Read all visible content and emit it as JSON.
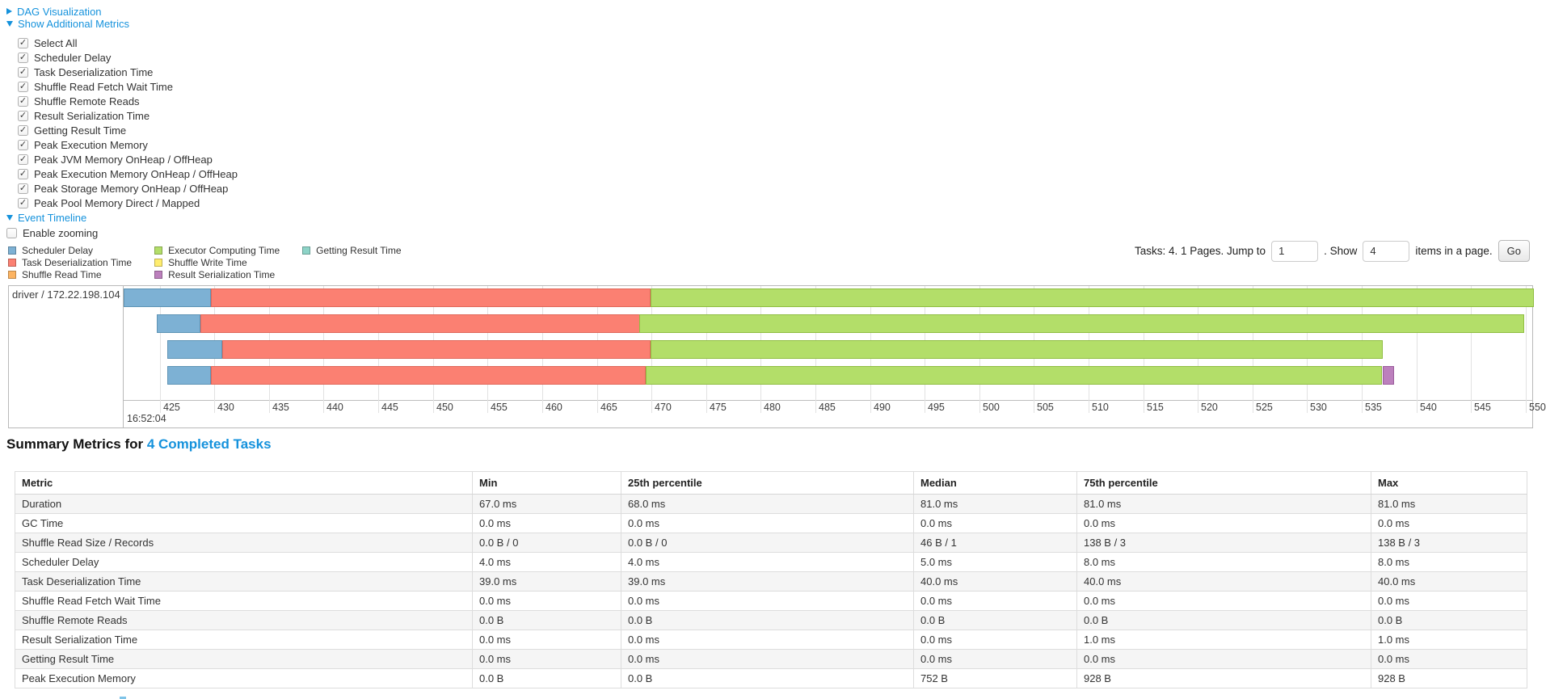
{
  "toggles": {
    "dag": "DAG Visualization",
    "metrics": "Show Additional Metrics",
    "timeline": "Event Timeline"
  },
  "metric_options": [
    {
      "label": "Select All",
      "checked": true
    },
    {
      "label": "Scheduler Delay",
      "checked": true
    },
    {
      "label": "Task Deserialization Time",
      "checked": true
    },
    {
      "label": "Shuffle Read Fetch Wait Time",
      "checked": true
    },
    {
      "label": "Shuffle Remote Reads",
      "checked": true
    },
    {
      "label": "Result Serialization Time",
      "checked": true
    },
    {
      "label": "Getting Result Time",
      "checked": true
    },
    {
      "label": "Peak Execution Memory",
      "checked": true
    },
    {
      "label": "Peak JVM Memory OnHeap / OffHeap",
      "checked": true
    },
    {
      "label": "Peak Execution Memory OnHeap / OffHeap",
      "checked": true
    },
    {
      "label": "Peak Storage Memory OnHeap / OffHeap",
      "checked": true
    },
    {
      "label": "Peak Pool Memory Direct / Mapped",
      "checked": true
    }
  ],
  "enable_zooming": {
    "label": "Enable zooming",
    "checked": false
  },
  "legend": {
    "columns": [
      [
        {
          "label": "Scheduler Delay",
          "color": "#7DB1D4"
        },
        {
          "label": "Task Deserialization Time",
          "color": "#FB8072"
        },
        {
          "label": "Shuffle Read Time",
          "color": "#FDB462"
        }
      ],
      [
        {
          "label": "Executor Computing Time",
          "color": "#B3DE69"
        },
        {
          "label": "Shuffle Write Time",
          "color": "#FFED6F"
        },
        {
          "label": "Result Serialization Time",
          "color": "#BC80BD"
        }
      ],
      [
        {
          "label": "Getting Result Time",
          "color": "#8DD3C7"
        }
      ]
    ]
  },
  "pagination": {
    "prefix": "Tasks: 4. 1 Pages. Jump to",
    "jump_value": "1",
    "between": ". Show",
    "show_value": "4",
    "suffix": "items in a page.",
    "go_label": "Go"
  },
  "chart_data": {
    "type": "timeline-gantt",
    "group_label": "driver / 172.22.198.104",
    "axis": {
      "min": 421.7,
      "max": 550.6,
      "tick_start": 425,
      "tick_end": 550,
      "tick_step": 5,
      "major_tick_label": "16:52:04"
    },
    "series_colors": {
      "scheduler_delay": {
        "fill": "#7DB1D4",
        "border": "#5E94B5"
      },
      "task_deserialization": {
        "fill": "#FB8072",
        "border": "#E0685A"
      },
      "executor_computing": {
        "fill": "#B3DE69",
        "border": "#90BE42"
      },
      "result_serialization": {
        "fill": "#BC80BD",
        "border": "#9A5C9B"
      }
    },
    "tasks": [
      {
        "segments": [
          {
            "type": "scheduler_delay",
            "start": 421.7,
            "end": 429.7
          },
          {
            "type": "task_deserialization",
            "start": 429.7,
            "end": 469.9
          },
          {
            "type": "executor_computing",
            "start": 469.9,
            "end": 550.7
          }
        ]
      },
      {
        "segments": [
          {
            "type": "scheduler_delay",
            "start": 424.7,
            "end": 428.7
          },
          {
            "type": "task_deserialization",
            "start": 428.7,
            "end": 468.9
          },
          {
            "type": "executor_computing",
            "start": 468.9,
            "end": 549.9
          }
        ]
      },
      {
        "segments": [
          {
            "type": "scheduler_delay",
            "start": 425.7,
            "end": 430.7
          },
          {
            "type": "task_deserialization",
            "start": 430.7,
            "end": 469.9
          },
          {
            "type": "executor_computing",
            "start": 469.9,
            "end": 536.9
          }
        ]
      },
      {
        "segments": [
          {
            "type": "scheduler_delay",
            "start": 425.7,
            "end": 429.7
          },
          {
            "type": "task_deserialization",
            "start": 429.7,
            "end": 469.5
          },
          {
            "type": "executor_computing",
            "start": 469.5,
            "end": 536.9
          },
          {
            "type": "result_serialization",
            "start": 536.9,
            "end": 537.9
          }
        ]
      }
    ]
  },
  "summary": {
    "heading_prefix": "Summary Metrics for ",
    "heading_link": "4 Completed Tasks",
    "columns": [
      "Metric",
      "Min",
      "25th percentile",
      "Median",
      "75th percentile",
      "Max"
    ],
    "rows": [
      [
        "Duration",
        "67.0 ms",
        "68.0 ms",
        "81.0 ms",
        "81.0 ms",
        "81.0 ms"
      ],
      [
        "GC Time",
        "0.0 ms",
        "0.0 ms",
        "0.0 ms",
        "0.0 ms",
        "0.0 ms"
      ],
      [
        "Shuffle Read Size / Records",
        "0.0 B / 0",
        "0.0 B / 0",
        "46 B / 1",
        "138 B / 3",
        "138 B / 3"
      ],
      [
        "Scheduler Delay",
        "4.0 ms",
        "4.0 ms",
        "5.0 ms",
        "8.0 ms",
        "8.0 ms"
      ],
      [
        "Task Deserialization Time",
        "39.0 ms",
        "39.0 ms",
        "40.0 ms",
        "40.0 ms",
        "40.0 ms"
      ],
      [
        "Shuffle Read Fetch Wait Time",
        "0.0 ms",
        "0.0 ms",
        "0.0 ms",
        "0.0 ms",
        "0.0 ms"
      ],
      [
        "Shuffle Remote Reads",
        "0.0 B",
        "0.0 B",
        "0.0 B",
        "0.0 B",
        "0.0 B"
      ],
      [
        "Result Serialization Time",
        "0.0 ms",
        "0.0 ms",
        "0.0 ms",
        "1.0 ms",
        "1.0 ms"
      ],
      [
        "Getting Result Time",
        "0.0 ms",
        "0.0 ms",
        "0.0 ms",
        "0.0 ms",
        "0.0 ms"
      ],
      [
        "Peak Execution Memory",
        "0.0 B",
        "0.0 B",
        "752 B",
        "928 B",
        "928 B"
      ]
    ]
  },
  "colors": {
    "link": "#1592dc"
  }
}
